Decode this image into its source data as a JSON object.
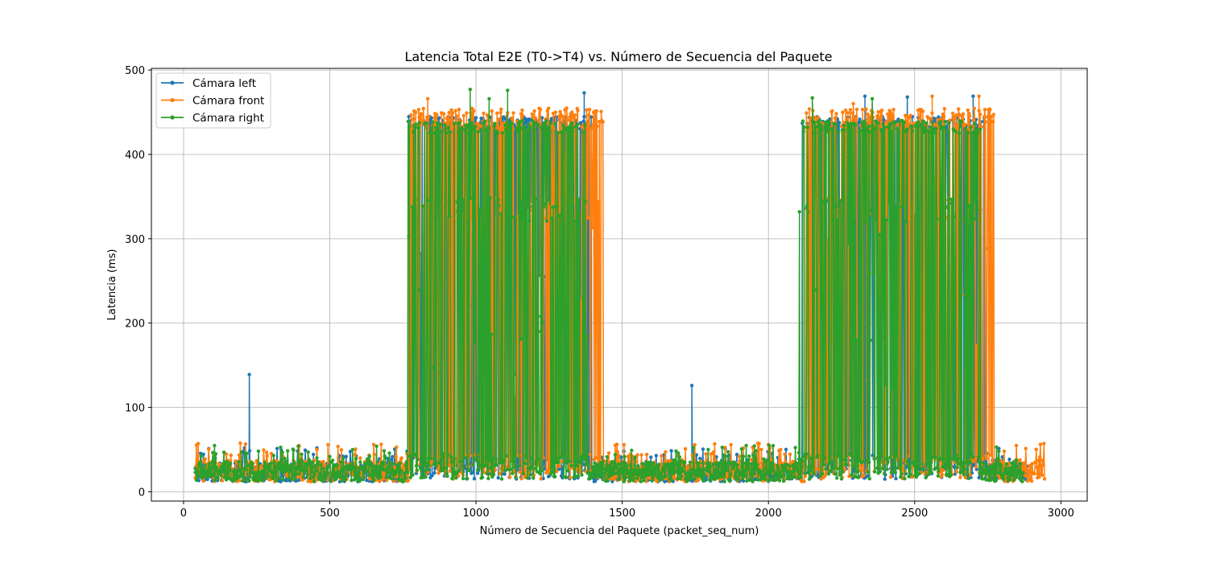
{
  "chart_data": {
    "type": "line",
    "title": "Latencia Total E2E (T0->T4) vs. Número de Secuencia del Paquete",
    "xlabel": "Número de Secuencia del Paquete (packet_seq_num)",
    "ylabel": "Latencia (ms)",
    "xlim": [
      -110,
      3090
    ],
    "ylim": [
      -11,
      502
    ],
    "xticks": [
      0,
      500,
      1000,
      1500,
      2000,
      2500,
      3000
    ],
    "yticks": [
      0,
      100,
      200,
      300,
      400,
      500
    ],
    "grid": true,
    "legend_position": "top-left",
    "series": [
      {
        "name": "Cámara left",
        "color": "#1f77b4",
        "x_start": 40,
        "x_end": 2885,
        "baseline": [
          12,
          52
        ],
        "burst_ranges": [
          [
            770,
            1395
          ],
          [
            2115,
            2740
          ]
        ],
        "burst_levels": [
          15,
          430,
          445
        ],
        "spikes": [
          {
            "x": 225,
            "y": 139
          },
          {
            "x": 1738,
            "y": 126
          },
          {
            "x": 1370,
            "y": 473
          },
          {
            "x": 2330,
            "y": 469
          },
          {
            "x": 2475,
            "y": 468
          },
          {
            "x": 2700,
            "y": 469
          }
        ]
      },
      {
        "name": "Cámara front",
        "color": "#ff7f0e",
        "x_start": 40,
        "x_end": 2945,
        "baseline": [
          12,
          58
        ],
        "burst_ranges": [
          [
            770,
            1435
          ],
          [
            2130,
            2770
          ]
        ],
        "burst_levels": [
          15,
          430,
          455
        ],
        "spikes": [
          {
            "x": 835,
            "y": 466
          },
          {
            "x": 2290,
            "y": 460
          },
          {
            "x": 2560,
            "y": 469
          },
          {
            "x": 2720,
            "y": 469
          }
        ]
      },
      {
        "name": "Cámara right",
        "color": "#2ca02c",
        "x_start": 40,
        "x_end": 2870,
        "baseline": [
          12,
          55
        ],
        "burst_ranges": [
          [
            765,
            1380
          ],
          [
            2105,
            2725
          ]
        ],
        "burst_levels": [
          15,
          425,
          440
        ],
        "spikes": [
          {
            "x": 980,
            "y": 477
          },
          {
            "x": 1045,
            "y": 466
          },
          {
            "x": 1108,
            "y": 476
          },
          {
            "x": 2150,
            "y": 467
          },
          {
            "x": 2355,
            "y": 466
          }
        ]
      }
    ]
  }
}
